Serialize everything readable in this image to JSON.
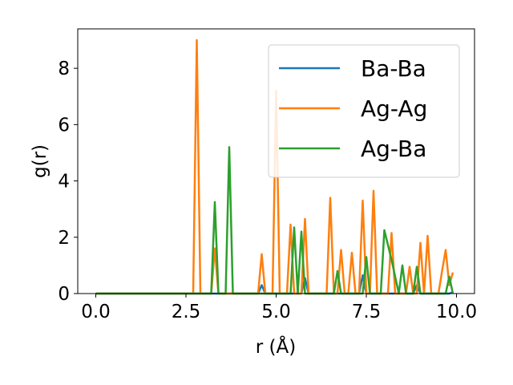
{
  "chart_data": {
    "type": "line",
    "title": "",
    "xlabel": "r (Å)",
    "ylabel": "g(r)",
    "xlim": [
      -0.5,
      10.5
    ],
    "ylim": [
      0,
      9.4
    ],
    "xticks": [
      0.0,
      2.5,
      5.0,
      7.5,
      10.0
    ],
    "xtick_labels": [
      "0.0",
      "2.5",
      "5.0",
      "7.5",
      "10.0"
    ],
    "yticks": [
      0,
      2,
      4,
      6,
      8
    ],
    "ytick_labels": [
      "0",
      "2",
      "4",
      "6",
      "8"
    ],
    "grid": false,
    "legend_position": "top-right",
    "series": [
      {
        "name": "Ba-Ba",
        "color": "#1f77b4",
        "x": [
          0,
          4.5,
          4.6,
          4.7,
          5.6,
          5.7,
          5.8,
          5.9,
          7.3,
          7.4,
          7.5,
          8.8,
          8.9,
          9.0,
          9.8,
          9.9
        ],
        "y": [
          0,
          0,
          0.3,
          0,
          0,
          0,
          0.55,
          0,
          0,
          0.65,
          0,
          0,
          0.3,
          0,
          0,
          0.05
        ]
      },
      {
        "name": "Ag-Ag",
        "color": "#ff7f0e",
        "x": [
          0,
          2.7,
          2.8,
          2.9,
          3.2,
          3.3,
          3.4,
          4.5,
          4.6,
          4.7,
          4.9,
          5.0,
          5.1,
          5.3,
          5.4,
          5.5,
          5.7,
          5.8,
          5.9,
          6.4,
          6.5,
          6.6,
          6.7,
          6.8,
          6.9,
          7.0,
          7.1,
          7.2,
          7.3,
          7.4,
          7.5,
          7.6,
          7.7,
          7.8,
          8.0,
          8.1,
          8.2,
          8.3,
          8.6,
          8.7,
          8.8,
          8.9,
          9.0,
          9.1,
          9.2,
          9.3,
          9.5,
          9.6,
          9.7,
          9.8,
          9.9
        ],
        "y": [
          0,
          0,
          9.0,
          0,
          0,
          1.6,
          0,
          0,
          1.4,
          0,
          0,
          7.2,
          0,
          0,
          2.45,
          0,
          0,
          2.65,
          0,
          0,
          3.4,
          0,
          0,
          1.55,
          0,
          0,
          1.45,
          0,
          0,
          3.3,
          0,
          0,
          3.65,
          0,
          0,
          0,
          2.15,
          0,
          0,
          0.95,
          0,
          0,
          1.8,
          0,
          2.05,
          0,
          0,
          0.8,
          1.55,
          0.3,
          0.75
        ]
      },
      {
        "name": "Ag-Ba",
        "color": "#2ca02c",
        "x": [
          0,
          3.2,
          3.3,
          3.4,
          3.6,
          3.7,
          3.8,
          5.4,
          5.5,
          5.6,
          5.7,
          5.8,
          6.6,
          6.7,
          6.8,
          7.4,
          7.5,
          7.6,
          7.9,
          8.0,
          8.2,
          8.4,
          8.5,
          8.6,
          8.8,
          8.9,
          9.0,
          9.1,
          9.7,
          9.8,
          9.9
        ],
        "y": [
          0,
          0,
          3.25,
          0,
          0,
          5.2,
          0,
          0,
          2.35,
          0,
          2.2,
          0,
          0,
          0.8,
          0,
          0,
          1.3,
          0,
          0,
          2.25,
          1.2,
          0,
          1.0,
          0,
          0,
          0.95,
          0,
          0,
          0,
          0.6,
          0
        ]
      }
    ]
  }
}
